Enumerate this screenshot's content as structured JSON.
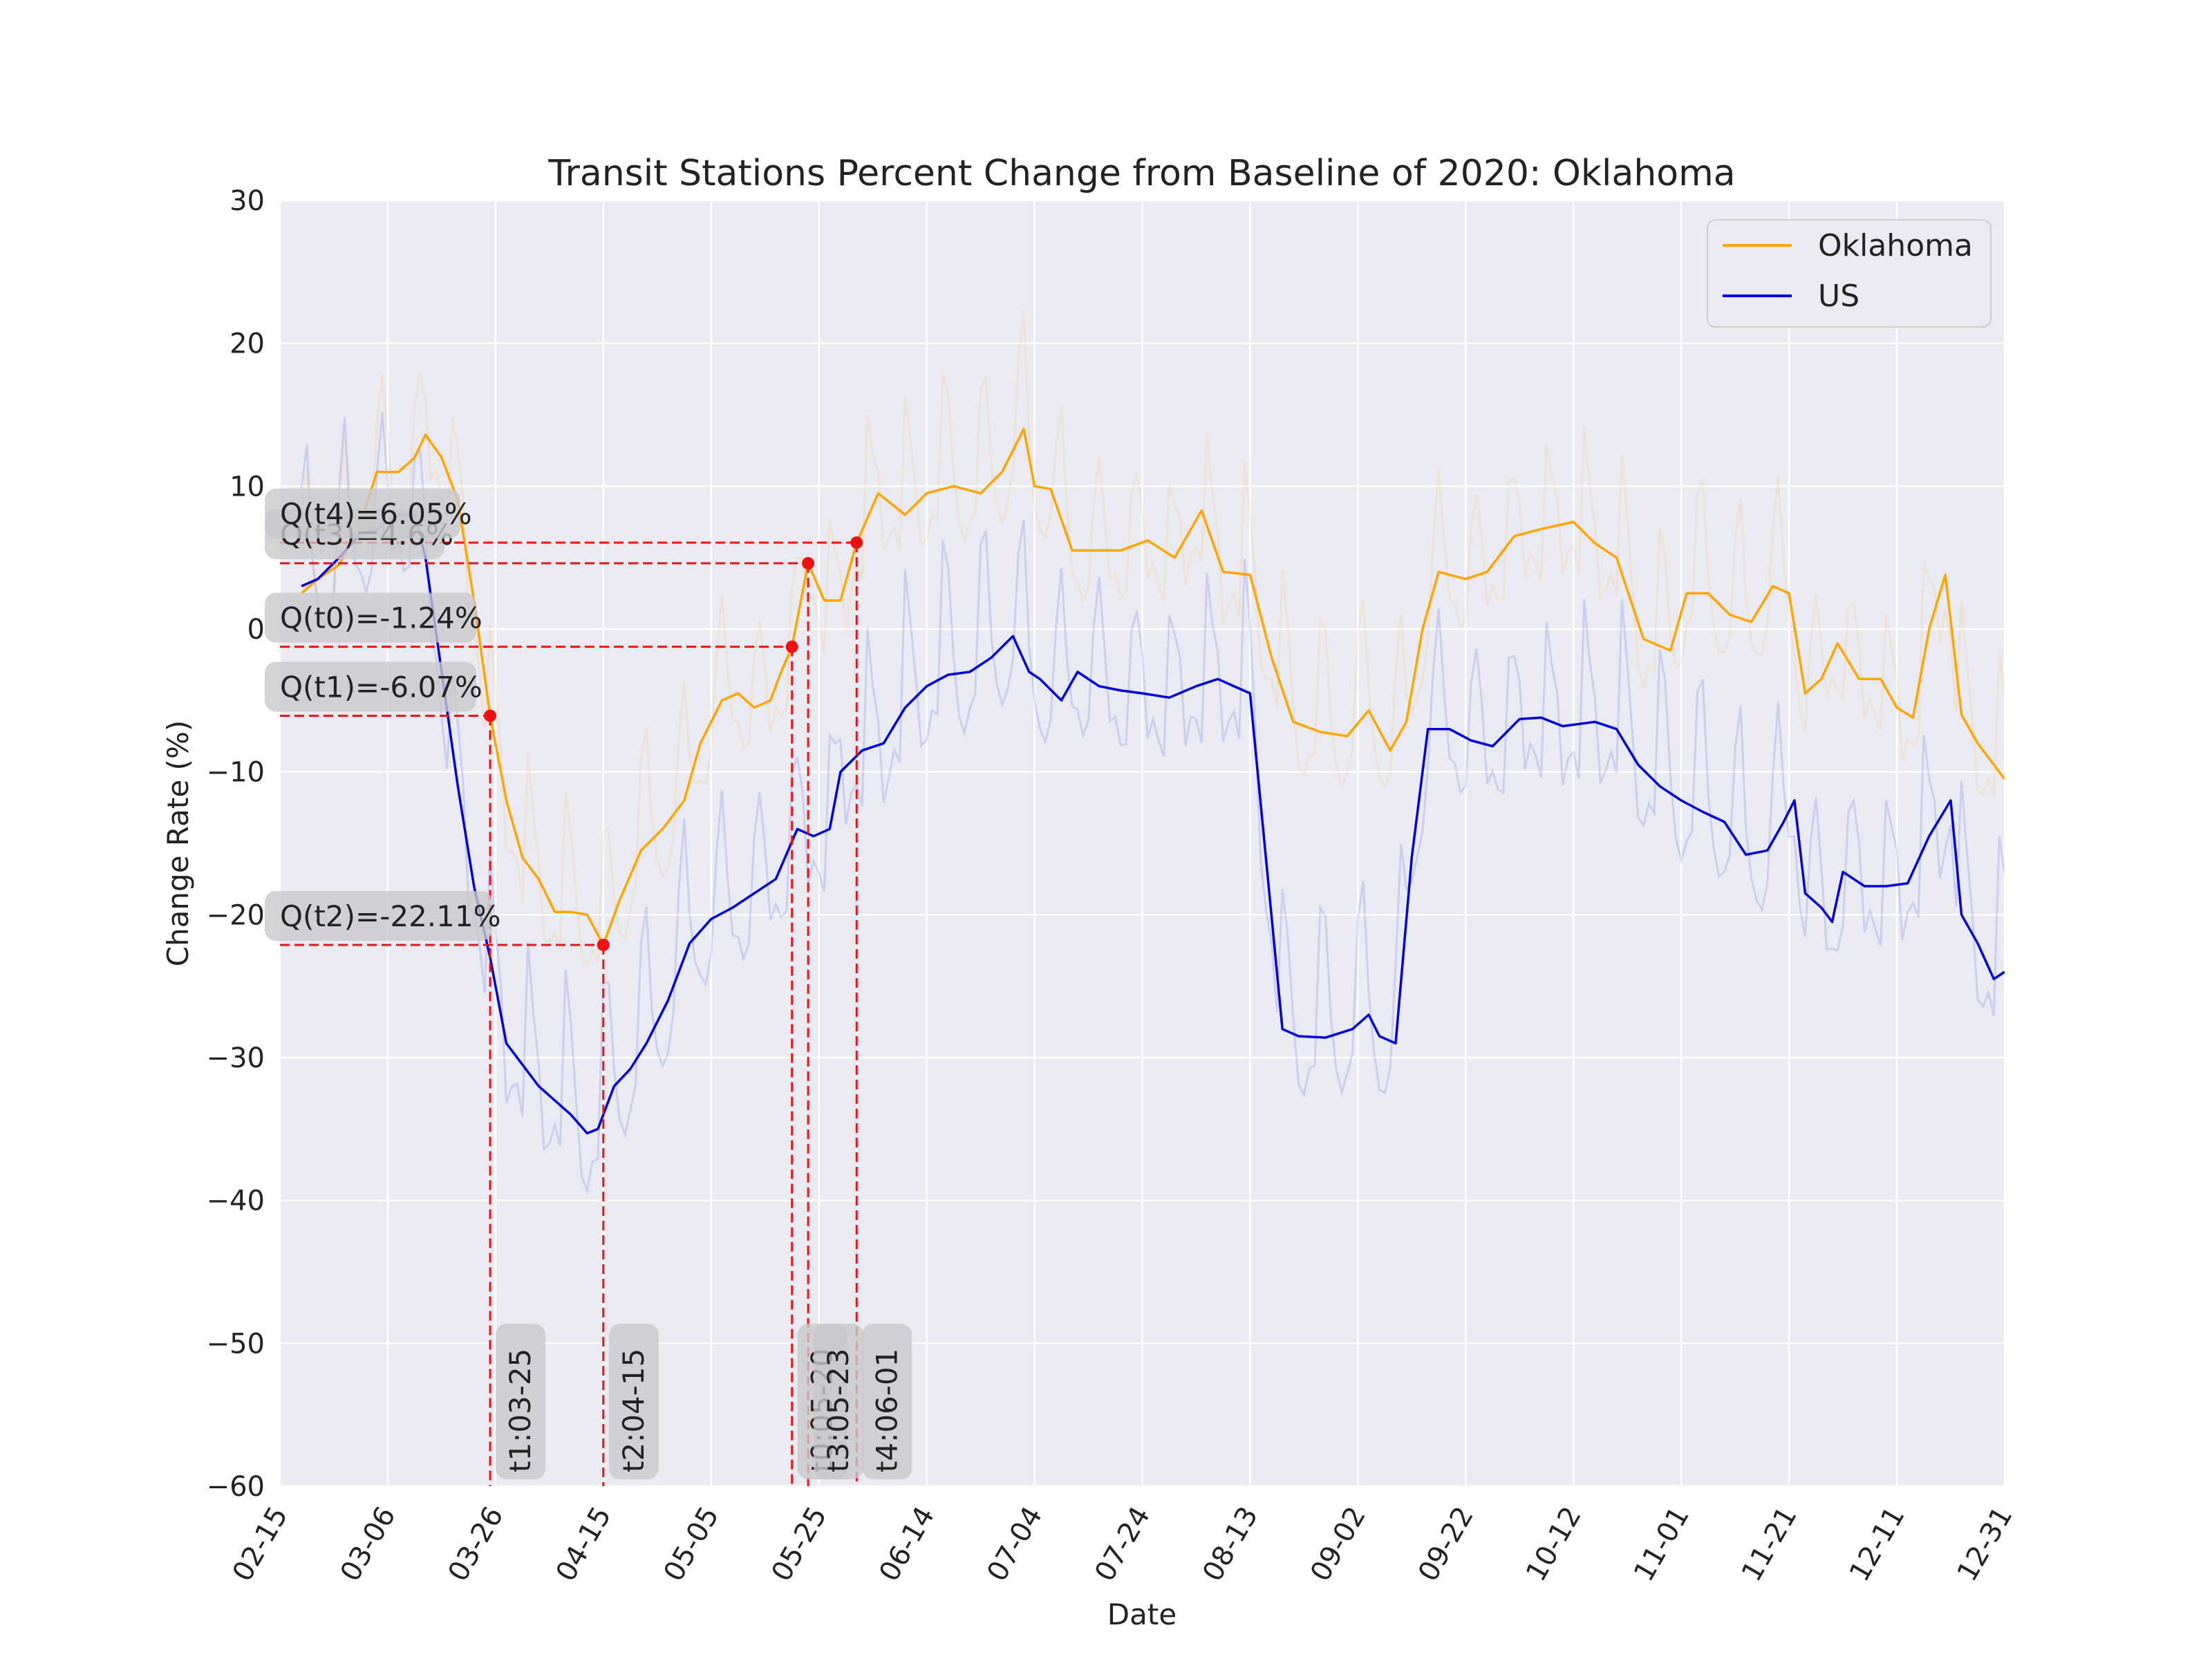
{
  "chart_data": {
    "type": "line",
    "title": "Transit Stations Percent Change from Baseline of 2020: Oklahoma",
    "xlabel": "Date",
    "ylabel": "Change Rate (%)",
    "ylim": [
      -60,
      30
    ],
    "yticks": [
      30,
      20,
      10,
      0,
      -10,
      -20,
      -30,
      -40,
      -50,
      -60
    ],
    "yticks_text": [
      "30",
      "20",
      "10",
      "0",
      "−10",
      "−20",
      "−30",
      "−40",
      "−50",
      "−60"
    ],
    "xlim": [
      "2020-02-15",
      "2020-12-31"
    ],
    "xticks": [
      "2020-02-15",
      "2020-03-06",
      "2020-03-26",
      "2020-04-15",
      "2020-05-05",
      "2020-05-25",
      "2020-06-14",
      "2020-07-04",
      "2020-07-24",
      "2020-08-13",
      "2020-09-02",
      "2020-09-22",
      "2020-10-12",
      "2020-11-01",
      "2020-11-21",
      "2020-12-11",
      "2020-12-31"
    ],
    "xticks_text": [
      "02-15",
      "03-06",
      "03-26",
      "04-15",
      "05-05",
      "05-25",
      "06-14",
      "07-04",
      "07-24",
      "08-13",
      "09-02",
      "09-22",
      "10-12",
      "11-01",
      "11-21",
      "12-11",
      "12-31"
    ],
    "grid": true,
    "legend_position": "top-right",
    "colors": {
      "background": "#eaeaf2",
      "oklahoma": "#ffa500",
      "us": "#0000dd",
      "annotation": "#ee1111",
      "annotation_box": "#c8c8cc"
    },
    "series": [
      {
        "name": "Oklahoma",
        "color": "#ffa500",
        "x": [
          "2020-02-19",
          "2020-02-22",
          "2020-02-26",
          "2020-03-01",
          "2020-03-04",
          "2020-03-08",
          "2020-03-11",
          "2020-03-13",
          "2020-03-16",
          "2020-03-19",
          "2020-03-22",
          "2020-03-25",
          "2020-03-28",
          "2020-03-31",
          "2020-04-03",
          "2020-04-06",
          "2020-04-09",
          "2020-04-12",
          "2020-04-15",
          "2020-04-18",
          "2020-04-22",
          "2020-04-26",
          "2020-04-30",
          "2020-05-03",
          "2020-05-07",
          "2020-05-10",
          "2020-05-13",
          "2020-05-16",
          "2020-05-18",
          "2020-05-20",
          "2020-05-23",
          "2020-05-26",
          "2020-05-29",
          "2020-06-01",
          "2020-06-05",
          "2020-06-10",
          "2020-06-14",
          "2020-06-19",
          "2020-06-24",
          "2020-06-28",
          "2020-07-02",
          "2020-07-04",
          "2020-07-07",
          "2020-07-11",
          "2020-07-15",
          "2020-07-20",
          "2020-07-25",
          "2020-07-30",
          "2020-08-04",
          "2020-08-08",
          "2020-08-13",
          "2020-08-17",
          "2020-08-21",
          "2020-08-26",
          "2020-08-31",
          "2020-09-04",
          "2020-09-08",
          "2020-09-11",
          "2020-09-14",
          "2020-09-17",
          "2020-09-22",
          "2020-09-26",
          "2020-10-01",
          "2020-10-06",
          "2020-10-12",
          "2020-10-16",
          "2020-10-20",
          "2020-10-25",
          "2020-10-30",
          "2020-11-02",
          "2020-11-06",
          "2020-11-10",
          "2020-11-14",
          "2020-11-18",
          "2020-11-21",
          "2020-11-24",
          "2020-11-27",
          "2020-11-30",
          "2020-12-04",
          "2020-12-08",
          "2020-12-11",
          "2020-12-14",
          "2020-12-17",
          "2020-12-20",
          "2020-12-23",
          "2020-12-26",
          "2020-12-31"
        ],
        "values": [
          2.5,
          3.5,
          4.5,
          7.5,
          11,
          11,
          12,
          13.6,
          12,
          9,
          2,
          -6.07,
          -12,
          -16,
          -17.5,
          -19.8,
          -19.8,
          -20,
          -22.11,
          -19,
          -15.5,
          -14,
          -12,
          -8,
          -5,
          -4.5,
          -5.5,
          -5,
          -3,
          -1.24,
          4.6,
          2,
          2,
          6.05,
          9.5,
          8,
          9.5,
          10,
          9.5,
          11,
          14,
          10,
          9.8,
          5.5,
          5.5,
          5.5,
          6.2,
          5,
          8.3,
          4,
          3.8,
          -2,
          -6.5,
          -7.2,
          -7.5,
          -5.7,
          -8.5,
          -6.5,
          0,
          4,
          3.5,
          4,
          6.5,
          7,
          7.5,
          6,
          5,
          -0.7,
          -1.5,
          2.5,
          2.5,
          1,
          0.5,
          3,
          2.5,
          -4.5,
          -3.5,
          -1,
          -3.5,
          -3.5,
          -5.5,
          -6.2,
          0,
          3.8,
          -6,
          -8,
          -10.5
        ]
      },
      {
        "name": "US",
        "color": "#0000dd",
        "x": [
          "2020-02-19",
          "2020-02-22",
          "2020-02-26",
          "2020-03-01",
          "2020-03-04",
          "2020-03-08",
          "2020-03-11",
          "2020-03-13",
          "2020-03-16",
          "2020-03-19",
          "2020-03-22",
          "2020-03-25",
          "2020-03-28",
          "2020-03-31",
          "2020-04-03",
          "2020-04-06",
          "2020-04-09",
          "2020-04-12",
          "2020-04-14",
          "2020-04-17",
          "2020-04-20",
          "2020-04-23",
          "2020-04-27",
          "2020-05-01",
          "2020-05-05",
          "2020-05-09",
          "2020-05-13",
          "2020-05-17",
          "2020-05-21",
          "2020-05-24",
          "2020-05-27",
          "2020-05-29",
          "2020-06-02",
          "2020-06-06",
          "2020-06-10",
          "2020-06-14",
          "2020-06-18",
          "2020-06-22",
          "2020-06-26",
          "2020-06-30",
          "2020-07-03",
          "2020-07-05",
          "2020-07-09",
          "2020-07-12",
          "2020-07-16",
          "2020-07-20",
          "2020-07-24",
          "2020-07-29",
          "2020-08-03",
          "2020-08-07",
          "2020-08-13",
          "2020-08-19",
          "2020-08-22",
          "2020-08-27",
          "2020-09-01",
          "2020-09-04",
          "2020-09-06",
          "2020-09-09",
          "2020-09-12",
          "2020-09-15",
          "2020-09-19",
          "2020-09-23",
          "2020-09-27",
          "2020-10-02",
          "2020-10-06",
          "2020-10-10",
          "2020-10-16",
          "2020-10-20",
          "2020-10-24",
          "2020-10-28",
          "2020-11-01",
          "2020-11-05",
          "2020-11-09",
          "2020-11-13",
          "2020-11-17",
          "2020-11-20",
          "2020-11-22",
          "2020-11-24",
          "2020-11-27",
          "2020-11-29",
          "2020-12-01",
          "2020-12-05",
          "2020-12-09",
          "2020-12-13",
          "2020-12-17",
          "2020-12-21",
          "2020-12-23",
          "2020-12-26",
          "2020-12-29",
          "2020-12-31"
        ],
        "values": [
          3,
          3.5,
          5,
          6.7,
          7,
          8,
          8,
          5,
          -3,
          -11,
          -18,
          -23,
          -29,
          -30.5,
          -32,
          -33,
          -34,
          -35.3,
          -35,
          -32,
          -30.8,
          -29,
          -26,
          -22,
          -20.3,
          -19.5,
          -18.5,
          -17.5,
          -14,
          -14.5,
          -14,
          -10,
          -8.5,
          -8,
          -5.5,
          -4,
          -3.2,
          -3,
          -2,
          -0.5,
          -3,
          -3.5,
          -5,
          -3,
          -4,
          -4.3,
          -4.5,
          -4.8,
          -4,
          -3.5,
          -4.5,
          -28,
          -28.5,
          -28.6,
          -28,
          -27,
          -28.5,
          -29,
          -16,
          -7,
          -7,
          -7.8,
          -8.2,
          -6.3,
          -6.2,
          -6.8,
          -6.5,
          -7,
          -9.5,
          -11,
          -12,
          -12.8,
          -13.5,
          -15.8,
          -15.5,
          -13.5,
          -12,
          -18.5,
          -19.5,
          -20.5,
          -17,
          -18,
          -18,
          -17.8,
          -14.5,
          -12,
          -20,
          -22,
          -24.5,
          -24
        ]
      }
    ],
    "markers": [
      {
        "id": "t0",
        "date": "2020-05-20",
        "value": -1.24,
        "date_label": "t0:05-20",
        "value_label": "Q(t0)=-1.24%"
      },
      {
        "id": "t1",
        "date": "2020-03-25",
        "value": -6.07,
        "date_label": "t1:03-25",
        "value_label": "Q(t1)=-6.07%"
      },
      {
        "id": "t2",
        "date": "2020-04-15",
        "value": -22.11,
        "date_label": "t2:04-15",
        "value_label": "Q(t2)=-22.11%"
      },
      {
        "id": "t3",
        "date": "2020-05-23",
        "value": 4.6,
        "date_label": "t3:05-23",
        "value_label": "Q(t3)=4.6%"
      },
      {
        "id": "t4",
        "date": "2020-06-01",
        "value": 6.05,
        "date_label": "t4:06-01",
        "value_label": "Q(t4)=6.05%"
      }
    ]
  }
}
